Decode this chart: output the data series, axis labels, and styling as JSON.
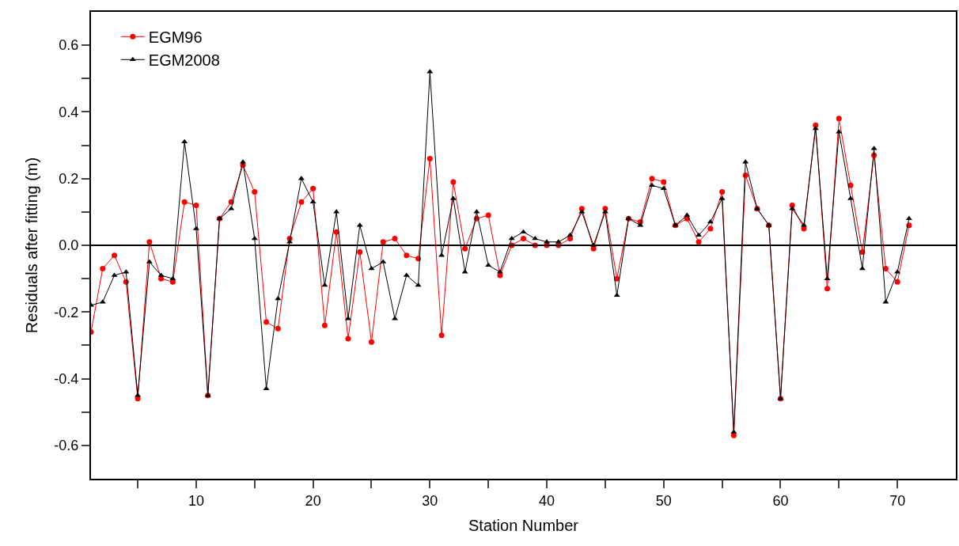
{
  "chart_data": {
    "type": "line",
    "xlabel": "Station Number",
    "ylabel": "Residuals after fitting (m)",
    "x": [
      1,
      2,
      3,
      4,
      5,
      6,
      7,
      8,
      9,
      10,
      11,
      12,
      13,
      14,
      15,
      16,
      17,
      18,
      19,
      20,
      21,
      22,
      23,
      24,
      25,
      26,
      27,
      28,
      29,
      30,
      31,
      32,
      33,
      34,
      35,
      36,
      37,
      38,
      39,
      40,
      41,
      42,
      43,
      44,
      45,
      46,
      47,
      48,
      49,
      50,
      51,
      52,
      53,
      54,
      55,
      56,
      57,
      58,
      59,
      60,
      61,
      62,
      63,
      64,
      65,
      66,
      67,
      68,
      69,
      70,
      71
    ],
    "series": [
      {
        "name": "EGM96",
        "color": "#ff0000",
        "marker": "circle",
        "values": [
          -0.26,
          -0.07,
          -0.03,
          -0.11,
          -0.46,
          0.01,
          -0.1,
          -0.11,
          0.13,
          0.12,
          -0.45,
          0.08,
          0.13,
          0.24,
          0.16,
          -0.23,
          -0.25,
          0.02,
          0.13,
          0.17,
          -0.24,
          0.04,
          -0.28,
          -0.02,
          -0.29,
          0.01,
          0.02,
          -0.03,
          -0.04,
          0.26,
          -0.27,
          0.19,
          -0.01,
          0.08,
          0.09,
          -0.09,
          0.0,
          0.02,
          0.0,
          0.0,
          0.0,
          0.02,
          0.11,
          -0.01,
          0.11,
          -0.1,
          0.08,
          0.07,
          0.2,
          0.19,
          0.06,
          0.08,
          0.01,
          0.05,
          0.16,
          -0.57,
          0.21,
          0.11,
          0.06,
          -0.46,
          0.12,
          0.05,
          0.36,
          -0.13,
          0.38,
          0.18,
          -0.02,
          0.27,
          -0.07,
          -0.11,
          0.06
        ]
      },
      {
        "name": "EGM2008",
        "color": "#000000",
        "marker": "triangle",
        "values": [
          -0.18,
          -0.17,
          -0.09,
          -0.08,
          -0.45,
          -0.05,
          -0.09,
          -0.1,
          0.31,
          0.05,
          -0.45,
          0.08,
          0.11,
          0.25,
          0.02,
          -0.43,
          -0.16,
          0.01,
          0.2,
          0.13,
          -0.12,
          0.1,
          -0.22,
          0.06,
          -0.07,
          -0.05,
          -0.22,
          -0.09,
          -0.12,
          0.52,
          -0.03,
          0.14,
          -0.08,
          0.1,
          -0.06,
          -0.08,
          0.02,
          0.04,
          0.02,
          0.01,
          0.01,
          0.03,
          0.1,
          0.0,
          0.1,
          -0.15,
          0.08,
          0.06,
          0.18,
          0.17,
          0.06,
          0.09,
          0.03,
          0.07,
          0.14,
          -0.56,
          0.25,
          0.11,
          0.06,
          -0.46,
          0.11,
          0.06,
          0.35,
          -0.1,
          0.34,
          0.14,
          -0.07,
          0.29,
          -0.17,
          -0.08,
          0.08
        ]
      }
    ],
    "xlim": [
      1,
      75
    ],
    "xticks": [
      {
        "value": 5,
        "label": null
      },
      10,
      {
        "value": 15,
        "label": null
      },
      20,
      {
        "value": 25,
        "label": null
      },
      30,
      {
        "value": 35,
        "label": null
      },
      40,
      {
        "value": 45,
        "label": null
      },
      50,
      {
        "value": 55,
        "label": null
      },
      60,
      {
        "value": 65,
        "label": null
      },
      70
    ],
    "ylim": [
      -0.7,
      0.7
    ],
    "yticks": [
      {
        "value": -0.6,
        "label": "-0.6"
      },
      {
        "value": -0.5,
        "label": null
      },
      {
        "value": -0.4,
        "label": "-0.4"
      },
      {
        "value": -0.3,
        "label": null
      },
      {
        "value": -0.2,
        "label": "-0.2"
      },
      {
        "value": -0.1,
        "label": null
      },
      {
        "value": 0.0,
        "label": "0.0"
      },
      {
        "value": 0.1,
        "label": null
      },
      {
        "value": 0.2,
        "label": "0.2"
      },
      {
        "value": 0.3,
        "label": null
      },
      {
        "value": 0.4,
        "label": "0.4"
      },
      {
        "value": 0.5,
        "label": null
      },
      {
        "value": 0.6,
        "label": "0.6"
      }
    ],
    "ref_lines": [
      {
        "axis": "y",
        "value": 0,
        "color": "#000000"
      }
    ],
    "legend": "top left",
    "line_style": "solid"
  }
}
